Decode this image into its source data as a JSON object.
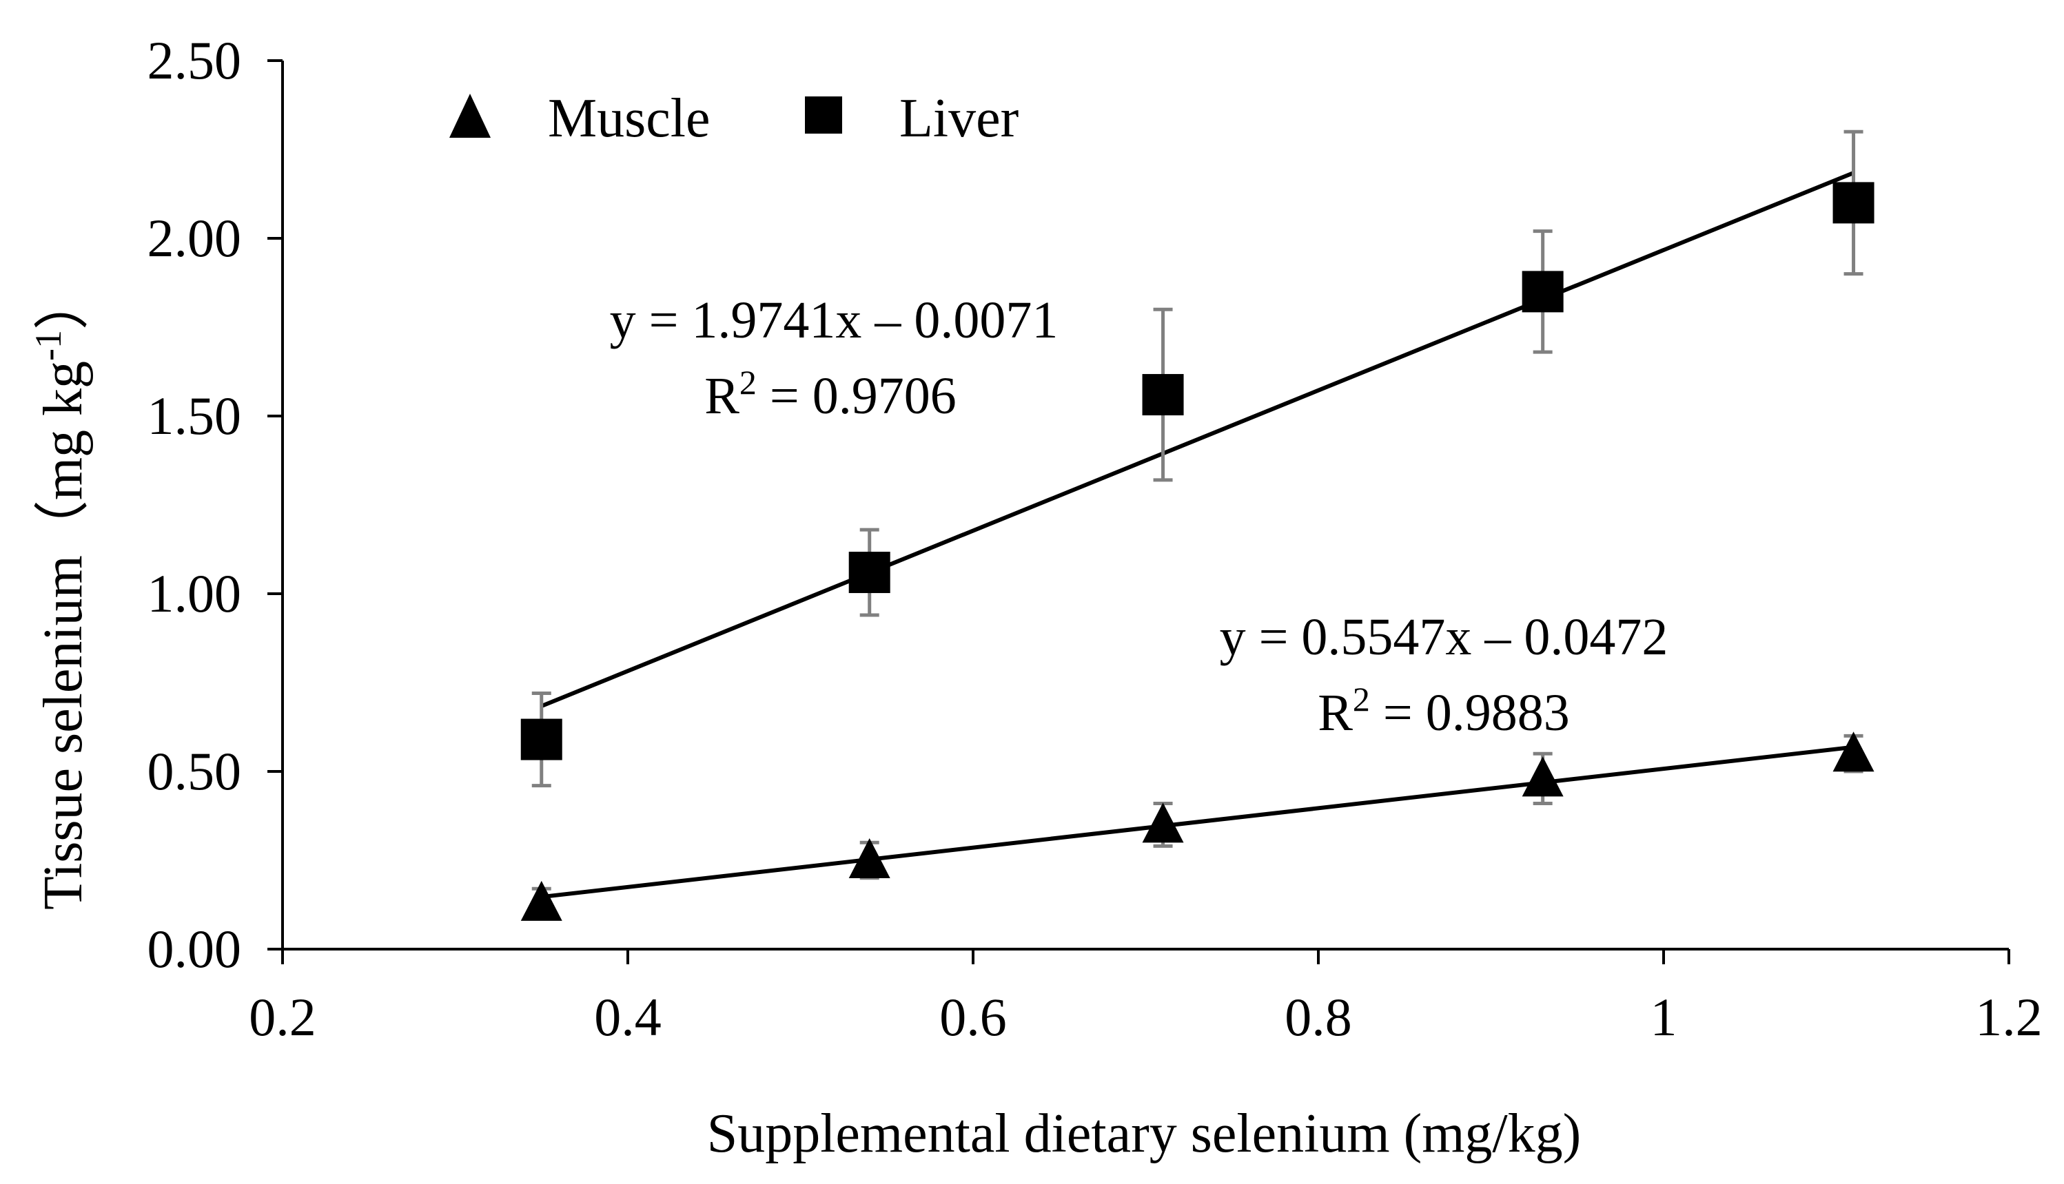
{
  "chart_data": {
    "type": "scatter",
    "title": "",
    "xlabel": "Supplemental dietary selenium (mg/kg)",
    "ylabel_parts": [
      "Tissue selenium（mg kg",
      "-1",
      "）"
    ],
    "xlim": [
      0.2,
      1.2
    ],
    "ylim": [
      0,
      2.5
    ],
    "x_ticks": [
      0.2,
      0.4,
      0.6,
      0.8,
      1,
      1.2
    ],
    "x_tick_labels": [
      "0.2",
      "0.4",
      "0.6",
      "0.8",
      "1",
      "1.2"
    ],
    "y_ticks": [
      0,
      0.5,
      1,
      1.5,
      2,
      2.5
    ],
    "y_tick_labels": [
      "0.00",
      "0.50",
      "1.00",
      "1.50",
      "2.00",
      "2.50"
    ],
    "legend_position": "top-left",
    "series": [
      {
        "name": "Muscle",
        "marker": "triangle",
        "color": "#000000",
        "x": [
          0.35,
          0.54,
          0.71,
          0.93,
          1.11
        ],
        "y": [
          0.13,
          0.25,
          0.35,
          0.48,
          0.55
        ],
        "error": [
          0.04,
          0.05,
          0.06,
          0.07,
          0.05
        ],
        "trendline": {
          "slope": 0.5547,
          "intercept": -0.0472,
          "x_range": [
            0.35,
            1.11
          ]
        },
        "equation_text": "y = 0.5547x – 0.0472",
        "r2_value": " = 0.9883"
      },
      {
        "name": "Liver",
        "marker": "square",
        "color": "#000000",
        "x": [
          0.35,
          0.54,
          0.71,
          0.93,
          1.11
        ],
        "y": [
          0.59,
          1.06,
          1.56,
          1.85,
          2.1
        ],
        "error": [
          0.13,
          0.12,
          0.24,
          0.17,
          0.2
        ],
        "trendline": {
          "slope": 1.9741,
          "intercept": -0.0071,
          "x_range": [
            0.35,
            1.11
          ]
        },
        "equation_text": "y = 1.9741x – 0.0071",
        "r2_value": " = 0.9706"
      }
    ],
    "r2_label": "R",
    "r2_sup": "2",
    "error_bar_color": "#808080"
  }
}
